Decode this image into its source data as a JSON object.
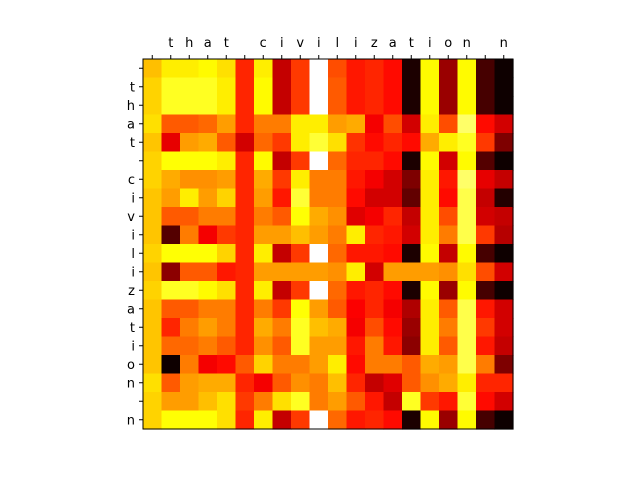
{
  "chart_data": {
    "type": "heatmap",
    "colormap": "hot",
    "value_range": [
      0,
      1
    ],
    "x_labels": [
      " ",
      "t",
      "h",
      "a",
      "t",
      " ",
      "c",
      "i",
      "v",
      "i",
      "l",
      "i",
      "z",
      "a",
      "t",
      "i",
      "o",
      "n",
      " ",
      "n"
    ],
    "y_labels": [
      "",
      "t",
      "h",
      "a",
      "t",
      " ",
      "c",
      "i",
      "v",
      "i",
      "l",
      "i",
      "z",
      "a",
      "t",
      "i",
      "o",
      "n",
      " ",
      "n"
    ],
    "values": [
      [
        0.65,
        0.72,
        0.72,
        0.74,
        0.7,
        0.42,
        0.72,
        0.28,
        0.45,
        1.0,
        0.48,
        0.4,
        0.42,
        0.38,
        0.04,
        0.74,
        0.22,
        0.74,
        0.1,
        0.02
      ],
      [
        0.68,
        0.78,
        0.78,
        0.78,
        0.72,
        0.42,
        0.74,
        0.28,
        0.45,
        1.0,
        0.5,
        0.4,
        0.42,
        0.38,
        0.04,
        0.74,
        0.22,
        0.74,
        0.1,
        0.02
      ],
      [
        0.68,
        0.78,
        0.78,
        0.78,
        0.72,
        0.42,
        0.74,
        0.28,
        0.45,
        1.0,
        0.5,
        0.4,
        0.42,
        0.38,
        0.04,
        0.74,
        0.22,
        0.74,
        0.1,
        0.02
      ],
      [
        0.7,
        0.5,
        0.5,
        0.52,
        0.6,
        0.42,
        0.55,
        0.55,
        0.72,
        0.72,
        0.6,
        0.62,
        0.35,
        0.48,
        0.3,
        0.72,
        0.48,
        0.85,
        0.38,
        0.3
      ],
      [
        0.66,
        0.33,
        0.6,
        0.62,
        0.5,
        0.3,
        0.52,
        0.45,
        0.72,
        0.8,
        0.7,
        0.44,
        0.38,
        0.42,
        0.38,
        0.62,
        0.72,
        0.78,
        0.45,
        0.18
      ],
      [
        0.68,
        0.75,
        0.75,
        0.75,
        0.72,
        0.42,
        0.74,
        0.28,
        0.45,
        1.0,
        0.52,
        0.42,
        0.42,
        0.38,
        0.04,
        0.74,
        0.3,
        0.74,
        0.12,
        0.02
      ],
      [
        0.68,
        0.62,
        0.58,
        0.58,
        0.6,
        0.42,
        0.62,
        0.45,
        0.72,
        0.55,
        0.55,
        0.4,
        0.35,
        0.3,
        0.18,
        0.72,
        0.4,
        0.85,
        0.33,
        0.28
      ],
      [
        0.66,
        0.6,
        0.72,
        0.6,
        0.68,
        0.42,
        0.6,
        0.4,
        0.8,
        0.55,
        0.55,
        0.38,
        0.3,
        0.3,
        0.14,
        0.72,
        0.38,
        0.82,
        0.28,
        0.05
      ],
      [
        0.66,
        0.5,
        0.5,
        0.55,
        0.55,
        0.42,
        0.55,
        0.5,
        0.75,
        0.62,
        0.58,
        0.32,
        0.35,
        0.42,
        0.28,
        0.72,
        0.48,
        0.82,
        0.3,
        0.28
      ],
      [
        0.66,
        0.12,
        0.55,
        0.35,
        0.45,
        0.42,
        0.6,
        0.6,
        0.65,
        0.6,
        0.55,
        0.72,
        0.42,
        0.4,
        0.3,
        0.72,
        0.55,
        0.82,
        0.45,
        0.26
      ],
      [
        0.68,
        0.75,
        0.75,
        0.75,
        0.68,
        0.42,
        0.72,
        0.28,
        0.45,
        1.0,
        0.52,
        0.4,
        0.4,
        0.38,
        0.04,
        0.74,
        0.28,
        0.74,
        0.1,
        0.02
      ],
      [
        0.66,
        0.2,
        0.5,
        0.5,
        0.4,
        0.42,
        0.6,
        0.6,
        0.6,
        0.6,
        0.58,
        0.72,
        0.3,
        0.6,
        0.6,
        0.6,
        0.58,
        0.7,
        0.48,
        0.3
      ],
      [
        0.68,
        0.78,
        0.78,
        0.74,
        0.7,
        0.42,
        0.72,
        0.28,
        0.45,
        1.0,
        0.52,
        0.4,
        0.42,
        0.38,
        0.04,
        0.74,
        0.22,
        0.74,
        0.1,
        0.02
      ],
      [
        0.66,
        0.5,
        0.5,
        0.55,
        0.55,
        0.42,
        0.55,
        0.45,
        0.75,
        0.6,
        0.5,
        0.36,
        0.42,
        0.35,
        0.25,
        0.72,
        0.5,
        0.82,
        0.4,
        0.3
      ],
      [
        0.66,
        0.42,
        0.55,
        0.6,
        0.55,
        0.42,
        0.62,
        0.55,
        0.78,
        0.65,
        0.62,
        0.35,
        0.48,
        0.38,
        0.22,
        0.72,
        0.55,
        0.82,
        0.45,
        0.3
      ],
      [
        0.66,
        0.52,
        0.52,
        0.55,
        0.5,
        0.42,
        0.58,
        0.5,
        0.78,
        0.6,
        0.6,
        0.4,
        0.55,
        0.4,
        0.2,
        0.72,
        0.5,
        0.82,
        0.4,
        0.28
      ],
      [
        0.66,
        0.02,
        0.55,
        0.35,
        0.38,
        0.5,
        0.68,
        0.55,
        0.55,
        0.6,
        0.72,
        0.38,
        0.55,
        0.55,
        0.5,
        0.62,
        0.6,
        0.82,
        0.55,
        0.18
      ],
      [
        0.7,
        0.5,
        0.6,
        0.62,
        0.62,
        0.42,
        0.35,
        0.5,
        0.58,
        0.55,
        0.65,
        0.42,
        0.28,
        0.32,
        0.5,
        0.58,
        0.62,
        0.72,
        0.42,
        0.42
      ],
      [
        0.68,
        0.6,
        0.6,
        0.65,
        0.7,
        0.45,
        0.55,
        0.7,
        0.78,
        0.55,
        0.6,
        0.5,
        0.4,
        0.28,
        0.78,
        0.45,
        0.4,
        0.8,
        0.38,
        0.3
      ],
      [
        0.68,
        0.75,
        0.75,
        0.75,
        0.7,
        0.42,
        0.72,
        0.28,
        0.45,
        1.0,
        0.52,
        0.4,
        0.42,
        0.38,
        0.04,
        0.74,
        0.22,
        0.74,
        0.1,
        0.02
      ]
    ]
  }
}
